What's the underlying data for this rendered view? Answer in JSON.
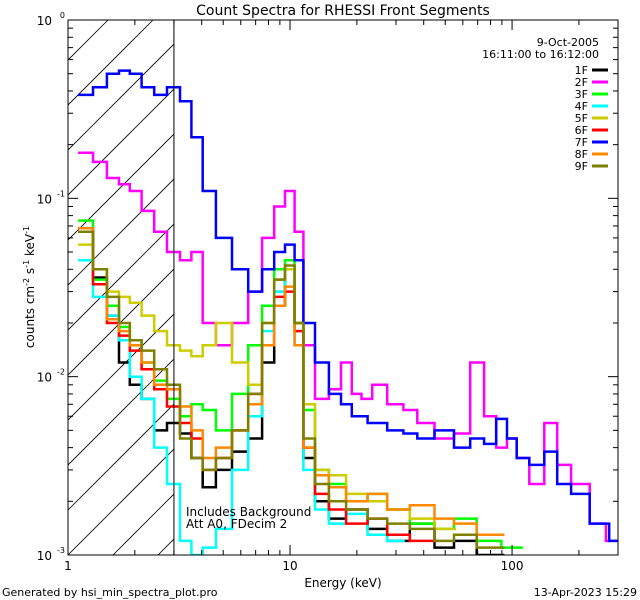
{
  "chart_data": {
    "type": "line",
    "title": "Count Spectra for RHESSI Front Segments",
    "xlabel": "Energy (keV)",
    "ylabel_parts": [
      "counts cm",
      "-2",
      " s",
      "-1",
      " keV",
      "-1"
    ],
    "xscale": "log",
    "yscale": "log",
    "xlim": [
      1,
      300
    ],
    "ylim": [
      0.001,
      1
    ],
    "x_ticks": [
      {
        "value": 1,
        "label": "1"
      },
      {
        "value": 10,
        "label": "10"
      },
      {
        "value": 100,
        "label": "100"
      }
    ],
    "y_ticks": [
      {
        "value": 1,
        "base": "10",
        "exp": "0"
      },
      {
        "value": 0.1,
        "base": "10",
        "exp": "-1"
      },
      {
        "value": 0.01,
        "base": "10",
        "exp": "-2"
      },
      {
        "value": 0.001,
        "base": "10",
        "exp": "-3"
      }
    ],
    "info": {
      "date": "9-Oct-2005",
      "time_range": "16:11:00 to 16:12:00"
    },
    "legend_position": "top-right",
    "annotation_lines": [
      "Includes Background",
      "Att A0, FDecim 2"
    ],
    "hatched_region_x": [
      1,
      3
    ],
    "series": [
      {
        "name": "1F",
        "color": "#000000",
        "values": [
          [
            1.2,
            0.068
          ],
          [
            1.4,
            0.036
          ],
          [
            1.6,
            0.022
          ],
          [
            1.8,
            0.012
          ],
          [
            2.0,
            0.009
          ],
          [
            2.3,
            0.0075
          ],
          [
            2.6,
            0.005
          ],
          [
            3.0,
            0.0055
          ],
          [
            3.4,
            0.0048
          ],
          [
            3.8,
            0.0035
          ],
          [
            4.3,
            0.0024
          ],
          [
            5.0,
            0.003
          ],
          [
            6.0,
            0.0038
          ],
          [
            7.0,
            0.0045
          ],
          [
            8.0,
            0.012
          ],
          [
            9.0,
            0.025
          ],
          [
            10.0,
            0.04
          ],
          [
            11.0,
            0.02
          ],
          [
            12.0,
            0.0035
          ],
          [
            14.0,
            0.002
          ],
          [
            16.0,
            0.0016
          ],
          [
            20.0,
            0.0018
          ],
          [
            25.0,
            0.0014
          ],
          [
            30.0,
            0.0012
          ],
          [
            40.0,
            0.0015
          ],
          [
            50.0,
            0.0011
          ],
          [
            60.0,
            0.0012
          ],
          [
            80.0,
            0.001
          ]
        ]
      },
      {
        "name": "2F",
        "color": "#ff00ff",
        "values": [
          [
            1.2,
            0.18
          ],
          [
            1.4,
            0.16
          ],
          [
            1.6,
            0.13
          ],
          [
            1.8,
            0.12
          ],
          [
            2.0,
            0.11
          ],
          [
            2.3,
            0.085
          ],
          [
            2.6,
            0.065
          ],
          [
            3.0,
            0.05
          ],
          [
            3.4,
            0.045
          ],
          [
            3.8,
            0.05
          ],
          [
            4.3,
            0.02
          ],
          [
            5.0,
            0.015
          ],
          [
            6.0,
            0.02
          ],
          [
            7.0,
            0.03
          ],
          [
            8.0,
            0.06
          ],
          [
            9.0,
            0.09
          ],
          [
            10.0,
            0.11
          ],
          [
            11.0,
            0.065
          ],
          [
            12.0,
            0.015
          ],
          [
            14.0,
            0.0075
          ],
          [
            16.0,
            0.0085
          ],
          [
            18.0,
            0.012
          ],
          [
            20.0,
            0.008
          ],
          [
            22.0,
            0.0075
          ],
          [
            25.0,
            0.009
          ],
          [
            30.0,
            0.007
          ],
          [
            35.0,
            0.0065
          ],
          [
            40.0,
            0.0055
          ],
          [
            50.0,
            0.0045
          ],
          [
            60.0,
            0.0048
          ],
          [
            70.0,
            0.012
          ],
          [
            80.0,
            0.006
          ],
          [
            90.0,
            0.004
          ],
          [
            100.0,
            0.0045
          ],
          [
            110.0,
            0.0035
          ],
          [
            130.0,
            0.0025
          ],
          [
            150.0,
            0.0055
          ],
          [
            170.0,
            0.0032
          ],
          [
            200.0,
            0.0025
          ],
          [
            250.0,
            0.0015
          ],
          [
            280.0,
            0.0012
          ]
        ]
      },
      {
        "name": "3F",
        "color": "#00ff00",
        "values": [
          [
            1.2,
            0.075
          ],
          [
            1.4,
            0.035
          ],
          [
            1.6,
            0.025
          ],
          [
            1.8,
            0.019
          ],
          [
            2.0,
            0.016
          ],
          [
            2.3,
            0.012
          ],
          [
            2.6,
            0.0095
          ],
          [
            3.0,
            0.0075
          ],
          [
            3.4,
            0.006
          ],
          [
            3.8,
            0.007
          ],
          [
            4.3,
            0.0065
          ],
          [
            5.0,
            0.005
          ],
          [
            6.0,
            0.008
          ],
          [
            7.0,
            0.015
          ],
          [
            8.0,
            0.025
          ],
          [
            9.0,
            0.04
          ],
          [
            10.0,
            0.045
          ],
          [
            11.0,
            0.02
          ],
          [
            12.0,
            0.0065
          ],
          [
            14.0,
            0.003
          ],
          [
            16.0,
            0.0025
          ],
          [
            20.0,
            0.002
          ],
          [
            25.0,
            0.0022
          ],
          [
            30.0,
            0.0018
          ],
          [
            40.0,
            0.0015
          ],
          [
            50.0,
            0.0014
          ],
          [
            60.0,
            0.0016
          ],
          [
            80.0,
            0.0012
          ],
          [
            100.0,
            0.0011
          ]
        ]
      },
      {
        "name": "4F",
        "color": "#00ffff",
        "values": [
          [
            1.2,
            0.045
          ],
          [
            1.4,
            0.028
          ],
          [
            1.6,
            0.022
          ],
          [
            1.8,
            0.016
          ],
          [
            2.0,
            0.01
          ],
          [
            2.3,
            0.0075
          ],
          [
            2.6,
            0.004
          ],
          [
            3.0,
            0.0025
          ],
          [
            3.4,
            0.0012
          ],
          [
            3.8,
            0.001
          ],
          [
            4.3,
            0.0011
          ],
          [
            5.0,
            0.0014
          ],
          [
            6.0,
            0.003
          ],
          [
            7.0,
            0.006
          ],
          [
            8.0,
            0.018
          ],
          [
            9.0,
            0.03
          ],
          [
            10.0,
            0.04
          ],
          [
            11.0,
            0.015
          ],
          [
            12.0,
            0.003
          ],
          [
            14.0,
            0.0018
          ],
          [
            16.0,
            0.0015
          ],
          [
            20.0,
            0.0017
          ],
          [
            25.0,
            0.0013
          ],
          [
            30.0,
            0.0012
          ]
        ]
      },
      {
        "name": "5F",
        "color": "#cccc00",
        "values": [
          [
            1.2,
            0.055
          ],
          [
            1.4,
            0.04
          ],
          [
            1.6,
            0.03
          ],
          [
            1.8,
            0.028
          ],
          [
            2.0,
            0.026
          ],
          [
            2.3,
            0.022
          ],
          [
            2.6,
            0.018
          ],
          [
            3.0,
            0.015
          ],
          [
            3.4,
            0.014
          ],
          [
            3.8,
            0.013
          ],
          [
            4.3,
            0.015
          ],
          [
            5.0,
            0.02
          ],
          [
            6.0,
            0.012
          ],
          [
            7.0,
            0.009
          ],
          [
            8.0,
            0.02
          ],
          [
            9.0,
            0.035
          ],
          [
            10.0,
            0.04
          ],
          [
            11.0,
            0.02
          ],
          [
            12.0,
            0.007
          ],
          [
            14.0,
            0.003
          ],
          [
            16.0,
            0.0028
          ],
          [
            20.0,
            0.0022
          ],
          [
            25.0,
            0.002
          ],
          [
            30.0,
            0.0018
          ],
          [
            40.0,
            0.0016
          ],
          [
            50.0,
            0.0014
          ]
        ]
      },
      {
        "name": "6F",
        "color": "#ff0000",
        "values": [
          [
            1.2,
            0.065
          ],
          [
            1.4,
            0.033
          ],
          [
            1.6,
            0.02
          ],
          [
            1.8,
            0.017
          ],
          [
            2.0,
            0.014
          ],
          [
            2.3,
            0.011
          ],
          [
            2.6,
            0.0085
          ],
          [
            3.0,
            0.0068
          ],
          [
            3.4,
            0.0055
          ],
          [
            3.8,
            0.0045
          ],
          [
            4.3,
            0.003
          ],
          [
            5.0,
            0.0035
          ],
          [
            6.0,
            0.005
          ],
          [
            7.0,
            0.008
          ],
          [
            8.0,
            0.015
          ],
          [
            9.0,
            0.028
          ],
          [
            10.0,
            0.03
          ],
          [
            11.0,
            0.018
          ],
          [
            12.0,
            0.004
          ],
          [
            14.0,
            0.0022
          ],
          [
            16.0,
            0.0018
          ],
          [
            20.0,
            0.0015
          ],
          [
            25.0,
            0.0016
          ],
          [
            30.0,
            0.0013
          ],
          [
            40.0,
            0.0012
          ]
        ]
      },
      {
        "name": "7F",
        "color": "#0000ff",
        "values": [
          [
            1.2,
            0.38
          ],
          [
            1.4,
            0.42
          ],
          [
            1.6,
            0.5
          ],
          [
            1.8,
            0.52
          ],
          [
            2.0,
            0.5
          ],
          [
            2.3,
            0.42
          ],
          [
            2.6,
            0.38
          ],
          [
            3.0,
            0.42
          ],
          [
            3.4,
            0.35
          ],
          [
            3.8,
            0.22
          ],
          [
            4.3,
            0.11
          ],
          [
            5.0,
            0.06
          ],
          [
            6.0,
            0.04
          ],
          [
            7.0,
            0.03
          ],
          [
            8.0,
            0.04
          ],
          [
            9.0,
            0.05
          ],
          [
            10.0,
            0.055
          ],
          [
            11.0,
            0.045
          ],
          [
            12.0,
            0.02
          ],
          [
            14.0,
            0.012
          ],
          [
            16.0,
            0.008
          ],
          [
            18.0,
            0.007
          ],
          [
            20.0,
            0.006
          ],
          [
            25.0,
            0.0055
          ],
          [
            30.0,
            0.005
          ],
          [
            35.0,
            0.0048
          ],
          [
            40.0,
            0.0045
          ],
          [
            50.0,
            0.005
          ],
          [
            60.0,
            0.004
          ],
          [
            70.0,
            0.0045
          ],
          [
            80.0,
            0.0042
          ],
          [
            90.0,
            0.0058
          ],
          [
            100.0,
            0.0045
          ],
          [
            110.0,
            0.0035
          ],
          [
            130.0,
            0.0032
          ],
          [
            150.0,
            0.0038
          ],
          [
            170.0,
            0.0025
          ],
          [
            200.0,
            0.0022
          ],
          [
            250.0,
            0.0015
          ],
          [
            300.0,
            0.0012
          ]
        ]
      },
      {
        "name": "8F",
        "color": "#ff8800",
        "values": [
          [
            1.2,
            0.068
          ],
          [
            1.4,
            0.04
          ],
          [
            1.6,
            0.021
          ],
          [
            1.8,
            0.018
          ],
          [
            2.0,
            0.015
          ],
          [
            2.3,
            0.012
          ],
          [
            2.6,
            0.009
          ],
          [
            3.0,
            0.0085
          ],
          [
            3.4,
            0.0068
          ],
          [
            3.8,
            0.005
          ],
          [
            4.3,
            0.0035
          ],
          [
            5.0,
            0.004
          ],
          [
            6.0,
            0.005
          ],
          [
            7.0,
            0.007
          ],
          [
            8.0,
            0.015
          ],
          [
            9.0,
            0.025
          ],
          [
            10.0,
            0.032
          ],
          [
            11.0,
            0.015
          ],
          [
            12.0,
            0.004
          ],
          [
            14.0,
            0.0028
          ],
          [
            16.0,
            0.0024
          ],
          [
            20.0,
            0.002
          ],
          [
            25.0,
            0.0022
          ],
          [
            30.0,
            0.0018
          ],
          [
            40.0,
            0.0019
          ],
          [
            50.0,
            0.0016
          ],
          [
            60.0,
            0.0015
          ],
          [
            80.0,
            0.0013
          ]
        ]
      },
      {
        "name": "9F",
        "color": "#808000",
        "values": [
          [
            1.2,
            0.065
          ],
          [
            1.4,
            0.04
          ],
          [
            1.6,
            0.028
          ],
          [
            1.8,
            0.02
          ],
          [
            2.0,
            0.016
          ],
          [
            2.3,
            0.014
          ],
          [
            2.6,
            0.011
          ],
          [
            3.0,
            0.009
          ],
          [
            3.4,
            0.0045
          ],
          [
            3.8,
            0.0035
          ],
          [
            4.3,
            0.003
          ],
          [
            5.0,
            0.0035
          ],
          [
            6.0,
            0.005
          ],
          [
            7.0,
            0.008
          ],
          [
            8.0,
            0.02
          ],
          [
            9.0,
            0.035
          ],
          [
            10.0,
            0.042
          ],
          [
            11.0,
            0.02
          ],
          [
            12.0,
            0.0045
          ],
          [
            14.0,
            0.0025
          ],
          [
            16.0,
            0.002
          ],
          [
            20.0,
            0.0018
          ],
          [
            25.0,
            0.0016
          ],
          [
            30.0,
            0.0015
          ],
          [
            40.0,
            0.0014
          ],
          [
            50.0,
            0.0012
          ],
          [
            60.0,
            0.0013
          ],
          [
            80.0,
            0.0011
          ]
        ]
      }
    ]
  },
  "footer": {
    "generated_by": "Generated by hsi_min_spectra_plot.pro",
    "timestamp": "13-Apr-2023 15:29"
  }
}
